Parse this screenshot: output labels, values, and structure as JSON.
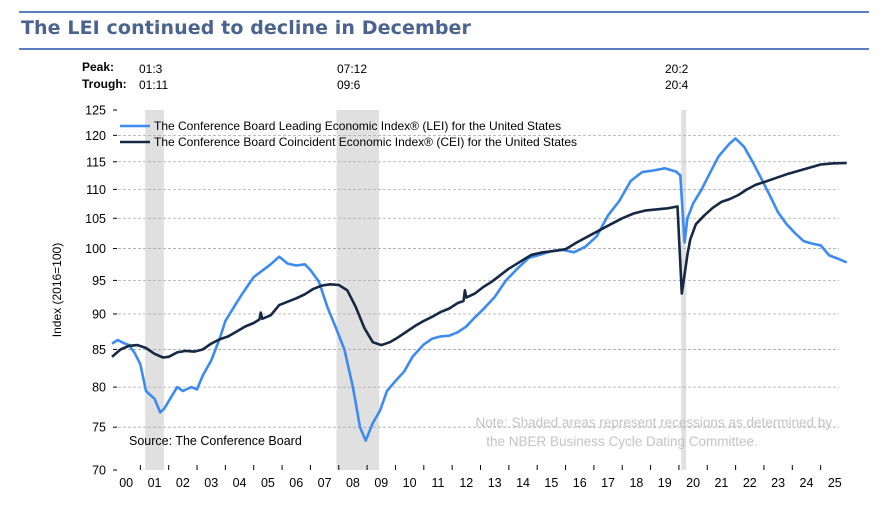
{
  "header": {
    "title": "The LEI continued to decline in December"
  },
  "recession_table": {
    "peak_label": "Peak:",
    "trough_label": "Trough:",
    "recessions": [
      {
        "peak": "01:3",
        "trough": "01:11"
      },
      {
        "peak": "07:12",
        "trough": "09:6"
      },
      {
        "peak": "20:2",
        "trough": "20:4"
      }
    ]
  },
  "chart_data": {
    "type": "line",
    "title": "The LEI continued to decline in December",
    "xlabel": "",
    "ylabel": "Index (2016=100)",
    "y_scale": "log",
    "ylim": [
      70,
      125
    ],
    "xlim": [
      2000.0,
      2026.0
    ],
    "grid": true,
    "legend_position": "top-left",
    "y_ticks": [
      70,
      75,
      80,
      85,
      90,
      95,
      100,
      105,
      110,
      115,
      120,
      125
    ],
    "x_tick_labels": [
      "00",
      "01",
      "02",
      "03",
      "04",
      "05",
      "06",
      "07",
      "08",
      "09",
      "10",
      "11",
      "12",
      "13",
      "14",
      "15",
      "16",
      "17",
      "18",
      "19",
      "20",
      "21",
      "22",
      "23",
      "24",
      "25"
    ],
    "recessions": [
      {
        "start": 2001.17,
        "end": 2001.83
      },
      {
        "start": 2007.92,
        "end": 2009.42
      },
      {
        "start": 2020.08,
        "end": 2020.25
      }
    ],
    "source": "Source: The Conference Board",
    "note_lines": [
      "Note: Shaded areas represent recessions as determined by",
      "the NBER Business Cycle Dating Committee."
    ],
    "series": [
      {
        "name": "The Conference Board Leading Economic Index® (LEI) for the United States",
        "color": "#3d8bf2",
        "x": [
          2000.0,
          2000.2,
          2000.4,
          2000.6,
          2000.8,
          2001.0,
          2001.2,
          2001.5,
          2001.7,
          2001.85,
          2002.0,
          2002.3,
          2002.5,
          2002.8,
          2003.0,
          2003.2,
          2003.5,
          2003.8,
          2004.0,
          2004.3,
          2004.6,
          2005.0,
          2005.3,
          2005.6,
          2005.9,
          2006.2,
          2006.5,
          2006.8,
          2007.0,
          2007.3,
          2007.6,
          2007.9,
          2008.2,
          2008.5,
          2008.75,
          2008.95,
          2009.2,
          2009.45,
          2009.7,
          2010.0,
          2010.3,
          2010.6,
          2011.0,
          2011.3,
          2011.6,
          2011.9,
          2012.2,
          2012.5,
          2012.8,
          2013.1,
          2013.5,
          2013.9,
          2014.3,
          2014.7,
          2015.1,
          2015.5,
          2015.9,
          2016.3,
          2016.7,
          2017.1,
          2017.5,
          2017.9,
          2018.3,
          2018.7,
          2019.1,
          2019.5,
          2019.9,
          2020.05,
          2020.2,
          2020.3,
          2020.5,
          2020.8,
          2021.1,
          2021.4,
          2021.8,
          2022.0,
          2022.3,
          2022.6,
          2022.9,
          2023.2,
          2023.5,
          2023.8,
          2024.1,
          2024.4,
          2024.7,
          2025.0,
          2025.3,
          2025.6,
          2025.92
        ],
        "values": [
          85.8,
          86.3,
          85.9,
          85.6,
          84.5,
          83.0,
          79.5,
          78.5,
          76.8,
          77.3,
          78.2,
          80.0,
          79.5,
          80.0,
          79.7,
          81.5,
          83.5,
          86.5,
          89.0,
          91.0,
          93.0,
          95.5,
          96.5,
          97.5,
          98.7,
          97.6,
          97.3,
          97.5,
          96.6,
          94.8,
          91.0,
          88.0,
          85.0,
          80.0,
          75.0,
          73.4,
          75.5,
          77.0,
          79.5,
          80.8,
          82.0,
          84.0,
          85.7,
          86.5,
          86.8,
          86.9,
          87.4,
          88.2,
          89.5,
          90.7,
          92.5,
          95.0,
          96.8,
          98.5,
          99.0,
          99.6,
          99.8,
          99.4,
          100.3,
          102.0,
          105.5,
          108.0,
          111.5,
          113.1,
          113.4,
          113.8,
          113.2,
          112.5,
          101.0,
          105.0,
          107.5,
          110.0,
          113.0,
          116.0,
          118.5,
          119.4,
          117.8,
          115.0,
          112.0,
          109.0,
          106.0,
          104.0,
          102.5,
          101.2,
          100.8,
          100.5,
          98.9,
          98.4,
          97.8
        ]
      },
      {
        "name": "The Conference Board Coincident Economic Index® (CEI) for the United States",
        "color": "#172844",
        "x": [
          2000.0,
          2000.3,
          2000.6,
          2000.9,
          2001.2,
          2001.5,
          2001.8,
          2002.0,
          2002.3,
          2002.6,
          2002.9,
          2003.2,
          2003.5,
          2003.8,
          2004.1,
          2004.4,
          2004.7,
          2005.0,
          2005.2,
          2005.25,
          2005.3,
          2005.6,
          2005.9,
          2006.2,
          2006.5,
          2006.8,
          2007.1,
          2007.4,
          2007.7,
          2008.0,
          2008.3,
          2008.6,
          2008.9,
          2009.2,
          2009.5,
          2009.8,
          2010.1,
          2010.4,
          2010.7,
          2011.0,
          2011.3,
          2011.6,
          2011.9,
          2012.2,
          2012.4,
          2012.45,
          2012.5,
          2012.8,
          2013.1,
          2013.4,
          2013.7,
          2014.0,
          2014.4,
          2014.8,
          2015.2,
          2015.6,
          2016.0,
          2016.4,
          2016.8,
          2017.2,
          2017.6,
          2018.0,
          2018.4,
          2018.8,
          2019.2,
          2019.6,
          2019.95,
          2020.1,
          2020.3,
          2020.4,
          2020.6,
          2020.9,
          2021.2,
          2021.5,
          2021.8,
          2022.1,
          2022.4,
          2022.7,
          2023.0,
          2023.4,
          2023.8,
          2024.2,
          2024.6,
          2025.0,
          2025.4,
          2025.92
        ],
        "values": [
          84.0,
          85.0,
          85.5,
          85.6,
          85.2,
          84.4,
          83.9,
          84.0,
          84.6,
          84.8,
          84.7,
          85.0,
          85.8,
          86.4,
          86.8,
          87.5,
          88.2,
          88.7,
          89.2,
          90.2,
          89.3,
          89.8,
          91.3,
          91.8,
          92.3,
          92.9,
          93.7,
          94.2,
          94.4,
          94.3,
          93.5,
          91.0,
          88.0,
          86.0,
          85.6,
          86.0,
          86.7,
          87.5,
          88.3,
          89.0,
          89.6,
          90.3,
          90.8,
          91.6,
          91.9,
          93.5,
          92.4,
          93.0,
          94.0,
          94.8,
          95.8,
          96.8,
          97.9,
          99.0,
          99.4,
          99.6,
          99.9,
          101.0,
          102.0,
          103.0,
          104.0,
          105.0,
          105.8,
          106.3,
          106.5,
          106.7,
          107.0,
          93.0,
          99.0,
          101.5,
          104.0,
          105.5,
          106.8,
          107.8,
          108.3,
          109.0,
          110.0,
          110.8,
          111.3,
          112.0,
          112.7,
          113.3,
          113.9,
          114.5,
          114.7,
          114.8
        ]
      }
    ]
  }
}
